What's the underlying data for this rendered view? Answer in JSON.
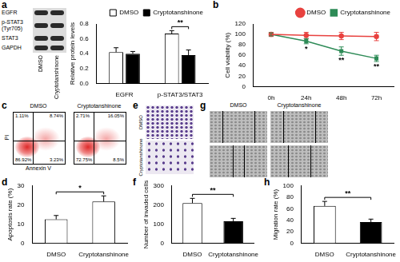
{
  "blot": {
    "panel": "a",
    "rows": [
      "EGFR",
      "p-STAT3 (Tyr705)",
      "STAT3",
      "GAPDH"
    ],
    "lanes": [
      "DMSO",
      "Cryptotanshinone"
    ]
  },
  "chart_data": [
    {
      "panel": "a",
      "type": "bar",
      "y_label": "Relative protein levels",
      "categories": [
        "EGFR",
        "p-STAT3/STAT3"
      ],
      "series": [
        {
          "name": "DMSO",
          "color": "#ffffff",
          "values": [
            0.42,
            0.67
          ],
          "errors": [
            0.06,
            0.04
          ]
        },
        {
          "name": "Cryptotanshinone",
          "color": "#000000",
          "values": [
            0.4,
            0.38
          ],
          "errors": [
            0.03,
            0.07
          ]
        }
      ],
      "ylim": [
        0,
        0.8
      ],
      "yticks": [
        {
          "value": 0,
          "label": "0.0"
        },
        0.2,
        0.4,
        0.6,
        0.8
      ],
      "grid": false,
      "legend": "upper right",
      "annotations": [
        {
          "text": "**",
          "category": "p-STAT3/STAT3"
        }
      ]
    },
    {
      "panel": "b",
      "type": "line",
      "y_label": "Cell viability (%)",
      "categories": [
        "0h",
        "24h",
        "48h",
        "72h"
      ],
      "series": [
        {
          "name": "DMSO",
          "color": "#e8423f",
          "marker": "circle",
          "values": [
            100,
            98,
            97,
            96
          ],
          "errors": [
            4,
            6,
            7,
            8
          ]
        },
        {
          "name": "Cryptotanshinone",
          "color": "#2e8b57",
          "marker": "square",
          "values": [
            100,
            87,
            68,
            54
          ],
          "errors": [
            3,
            5,
            8,
            6
          ]
        }
      ],
      "ylim": [
        0,
        120
      ],
      "yticks": [
        0,
        20,
        40,
        60,
        80,
        100,
        120
      ],
      "grid": false,
      "legend": "upper right",
      "annotations": [
        {
          "text": "*",
          "category": "24h",
          "series": "Cryptotanshinone"
        },
        {
          "text": "**",
          "category": "48h",
          "series": "Cryptotanshinone"
        },
        {
          "text": "**",
          "category": "72h",
          "series": "Cryptotanshinone"
        }
      ]
    },
    {
      "panel": "d",
      "type": "bar",
      "y_label": "Apoptosis rate (%)",
      "categories": [
        "DMSO",
        "Cryptotanshinone"
      ],
      "values": [
        12.5,
        21.8
      ],
      "errors": [
        2,
        3
      ],
      "colors": [
        "#ffffff",
        "#ffffff"
      ],
      "ylim": [
        0,
        30
      ],
      "yticks": [
        0,
        10,
        20,
        30
      ],
      "grid": false,
      "annotations": [
        {
          "text": "*"
        }
      ]
    },
    {
      "panel": "f",
      "type": "bar",
      "y_label": "Number of invaded cells",
      "categories": [
        "DMSO",
        "Cryptotanshinone"
      ],
      "values": [
        210,
        115
      ],
      "errors": [
        25,
        15
      ],
      "colors": [
        "#ffffff",
        "#000000"
      ],
      "ylim": [
        0,
        300
      ],
      "yticks": [
        0,
        100,
        200,
        300
      ],
      "grid": false,
      "annotations": [
        {
          "text": "**"
        }
      ]
    },
    {
      "panel": "h",
      "type": "bar",
      "y_label": "Migration rate (%)",
      "categories": [
        "DMSO",
        "Cryptotanshinone"
      ],
      "values": [
        65,
        37
      ],
      "errors": [
        8,
        5
      ],
      "colors": [
        "#ffffff",
        "#000000"
      ],
      "ylim": [
        0,
        100
      ],
      "yticks": [
        0,
        20,
        40,
        60,
        80,
        100
      ],
      "grid": false,
      "annotations": [
        {
          "text": "**"
        }
      ]
    }
  ],
  "flow": {
    "panel": "c",
    "x_label": "Annexin V",
    "y_label": "PI",
    "plots": [
      {
        "name": "DMSO",
        "upper_left": "1.11%",
        "upper_right": "8.74%",
        "lower_left": "86.92%",
        "lower_right": "3.23%"
      },
      {
        "name": "Cryptotanshinone",
        "upper_left": "2.71%",
        "upper_right": "16.05%",
        "lower_left": "72.75%",
        "lower_right": "8.5%"
      }
    ]
  },
  "invasion": {
    "panel": "e",
    "conditions": [
      "DMSO",
      "Cryptotanshinone"
    ]
  },
  "wound": {
    "panel": "g",
    "conditions": [
      "DMSO",
      "Cryptotanshinone"
    ]
  }
}
